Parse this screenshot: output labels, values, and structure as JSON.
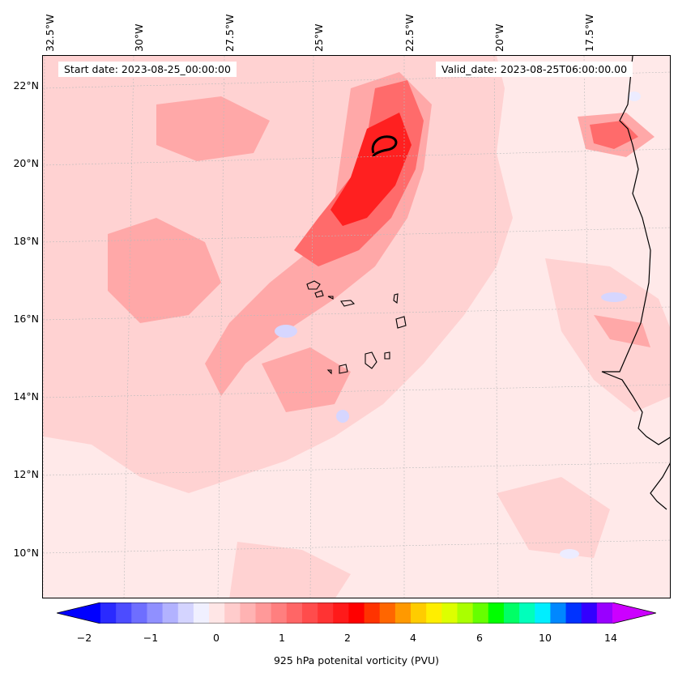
{
  "map": {
    "start_date_label": "Start date: 2023-08-25_00:00:00",
    "valid_date_label": "Valid_date: 2023-08-25T06:00:00.00",
    "lon_labels": [
      "32.5°W",
      "30°W",
      "27.5°W",
      "25°W",
      "22.5°W",
      "20°W",
      "17.5°W"
    ],
    "lat_labels": [
      "22°N",
      "20°N",
      "18°N",
      "16°N",
      "14°N",
      "12°N",
      "10°N"
    ],
    "extent": {
      "lon_min": -32.5,
      "lon_max": -15.5,
      "lat_min": 8.8,
      "lat_max": 22.8
    },
    "field": "925 hPa potential vorticity",
    "colors": {
      "background_low": "#ffe9e9",
      "light_pink": "#ffd2d2",
      "mid_pink": "#ffa8a8",
      "red": "#ff6b6b",
      "strong_red": "#ff2020",
      "light_blue": "#d6d6ff",
      "coast": "#000000"
    }
  },
  "colorbar": {
    "title": "925 hPa potenital vorticity (PVU)",
    "tick_labels": [
      "−2",
      "−1",
      "0",
      "1",
      "2",
      "4",
      "6",
      "10",
      "14"
    ],
    "colors": [
      "#0000ff",
      "#2a2aff",
      "#4c4cff",
      "#6e6eff",
      "#9090ff",
      "#b2b2ff",
      "#d4d4ff",
      "#f0f0ff",
      "#ffe6e6",
      "#ffcccc",
      "#ffb3b3",
      "#ff9999",
      "#ff7f7f",
      "#ff6666",
      "#ff4c4c",
      "#ff3333",
      "#ff1a1a",
      "#ff0000",
      "#ff3300",
      "#ff6600",
      "#ff9900",
      "#ffcc00",
      "#ffee00",
      "#ddff00",
      "#aaff00",
      "#66ff00",
      "#00ff00",
      "#00ff66",
      "#00ffbb",
      "#00eeff",
      "#0088ff",
      "#0033ff",
      "#3300ff",
      "#9900ff",
      "#cc00ff"
    ]
  }
}
